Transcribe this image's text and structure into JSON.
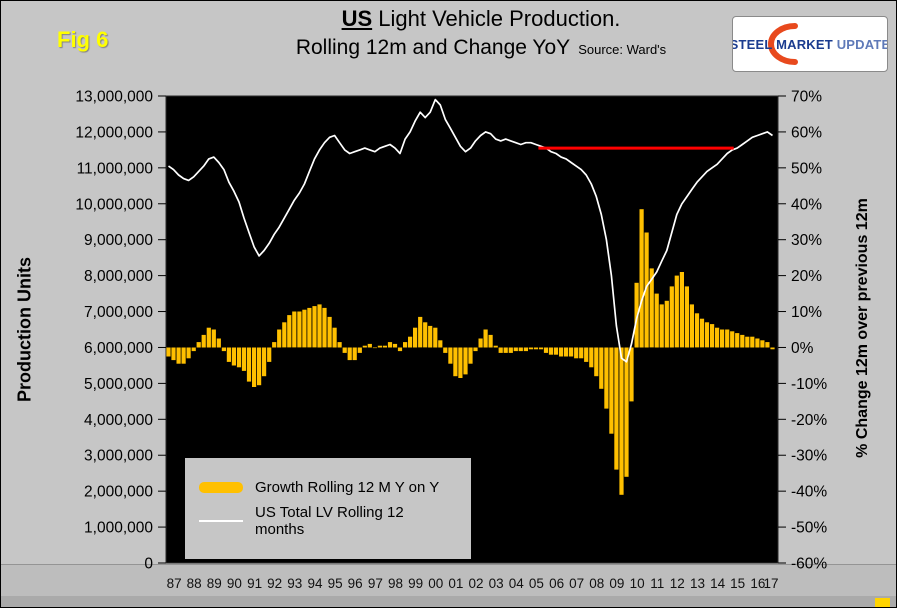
{
  "header": {
    "fig_label": "Fig 6",
    "title_us": "US",
    "title_rest": " Light Vehicle Production.",
    "title_line2": "Rolling 12m and Change YoY",
    "source": "Source: Ward's"
  },
  "logo": {
    "text_primary": "STEEL MARKET",
    "text_secondary": "UPDATE"
  },
  "left_axis": {
    "title": "Production Units",
    "min": 0,
    "max": 13000000,
    "step": 1000000,
    "tick_labels": [
      "0",
      "1,000,000",
      "2,000,000",
      "3,000,000",
      "4,000,000",
      "5,000,000",
      "6,000,000",
      "7,000,000",
      "8,000,000",
      "9,000,000",
      "10,000,000",
      "11,000,000",
      "12,000,000",
      "13,000,000"
    ]
  },
  "right_axis": {
    "title": "% Change 12m over previous 12m",
    "min": -60,
    "max": 70,
    "step": 10,
    "tick_labels": [
      "-60%",
      "-50%",
      "-40%",
      "-30%",
      "-20%",
      "-10%",
      "0%",
      "10%",
      "20%",
      "30%",
      "40%",
      "50%",
      "60%",
      "70%"
    ]
  },
  "x_axis": {
    "labels": [
      "87",
      "88",
      "89",
      "90",
      "91",
      "92",
      "93",
      "94",
      "95",
      "96",
      "97",
      "98",
      "99",
      "00",
      "01",
      "02",
      "03",
      "04",
      "05",
      "06",
      "07",
      "08",
      "09",
      "10",
      "11",
      "12",
      "13",
      "14",
      "15",
      "16",
      "17"
    ]
  },
  "legend": {
    "items": [
      {
        "label": "Growth Rolling 12 M Y on Y",
        "swatch": "bar",
        "color": "#FFC000"
      },
      {
        "label": "US Total LV Rolling 12 months",
        "swatch": "line",
        "color": "#FFFFFF"
      }
    ]
  },
  "colors": {
    "background": "#C6C6C6",
    "plot_background": "#000000",
    "bar": "#FFC000",
    "line": "#FFFFFF",
    "reference_line": "#FF0000",
    "fig_label": "#FFFF00"
  },
  "chart_data": {
    "type": "combo",
    "title": "US Light Vehicle Production. Rolling 12m and Change YoY",
    "source": "Ward's",
    "x_start": 1987.0,
    "x_step": 0.25,
    "x_range": [
      1987,
      2017.4
    ],
    "left_axis_range": [
      0,
      13000000
    ],
    "right_axis_range": [
      -60,
      70
    ],
    "grid": false,
    "legend_position": "inside-bottom-left",
    "series": [
      {
        "name": "Growth Rolling 12 M Y on Y",
        "type": "bar",
        "axis": "right",
        "unit": "%",
        "color": "#FFC000",
        "values": [
          -2.5,
          -3.5,
          -4.5,
          -4.5,
          -3.0,
          -1.0,
          1.5,
          3.5,
          5.5,
          5.0,
          2.5,
          -1.0,
          -4.0,
          -5.0,
          -5.5,
          -6.5,
          -9.5,
          -11.0,
          -10.5,
          -8.0,
          -4.0,
          1.5,
          5.0,
          7.0,
          9.0,
          10.0,
          10.0,
          10.5,
          11.0,
          11.5,
          12.0,
          11.0,
          8.5,
          5.5,
          1.5,
          -1.5,
          -3.5,
          -3.5,
          -1.5,
          0.5,
          1.0,
          0.0,
          0.5,
          0.5,
          1.5,
          1.0,
          -1.0,
          1.5,
          3.0,
          5.5,
          8.5,
          7.0,
          6.0,
          5.5,
          2.0,
          -1.5,
          -4.5,
          -8.0,
          -8.5,
          -7.5,
          -4.5,
          -1.0,
          2.5,
          5.0,
          3.5,
          0.5,
          -1.5,
          -1.5,
          -1.5,
          -1.0,
          -1.0,
          -1.0,
          -0.5,
          -0.5,
          -0.5,
          -1.5,
          -2.0,
          -2.0,
          -2.5,
          -2.5,
          -2.5,
          -3.0,
          -3.0,
          -4.0,
          -5.5,
          -8.0,
          -11.5,
          -17.0,
          -24.0,
          -34.0,
          -41.0,
          -36.0,
          -15.0,
          18.0,
          38.5,
          32.0,
          22.0,
          15.0,
          12.0,
          13.0,
          17.0,
          20.0,
          21.0,
          17.0,
          12.0,
          9.5,
          8.0,
          7.0,
          6.5,
          5.5,
          5.0,
          5.0,
          4.5,
          4.0,
          3.5,
          3.0,
          3.0,
          2.5,
          2.0,
          1.5,
          -0.5
        ]
      },
      {
        "name": "US Total LV Rolling 12 months",
        "type": "line",
        "axis": "left",
        "unit": "million units",
        "color": "#FFFFFF",
        "values": [
          11.05,
          10.95,
          10.8,
          10.7,
          10.65,
          10.75,
          10.9,
          11.05,
          11.25,
          11.3,
          11.15,
          10.95,
          10.6,
          10.35,
          10.05,
          9.6,
          9.2,
          8.8,
          8.55,
          8.7,
          8.9,
          9.15,
          9.35,
          9.6,
          9.85,
          10.1,
          10.3,
          10.55,
          10.9,
          11.25,
          11.5,
          11.7,
          11.85,
          11.9,
          11.7,
          11.5,
          11.4,
          11.45,
          11.5,
          11.55,
          11.5,
          11.45,
          11.55,
          11.6,
          11.65,
          11.55,
          11.4,
          11.8,
          12.0,
          12.3,
          12.55,
          12.4,
          12.55,
          12.9,
          12.75,
          12.35,
          12.1,
          11.85,
          11.6,
          11.45,
          11.55,
          11.75,
          11.9,
          12.0,
          11.95,
          11.8,
          11.75,
          11.8,
          11.75,
          11.7,
          11.65,
          11.7,
          11.7,
          11.65,
          11.6,
          11.55,
          11.45,
          11.4,
          11.3,
          11.25,
          11.15,
          11.05,
          10.95,
          10.8,
          10.55,
          10.2,
          9.7,
          9.0,
          8.0,
          6.6,
          5.7,
          5.6,
          6.1,
          6.8,
          7.3,
          7.7,
          7.9,
          8.1,
          8.4,
          8.7,
          9.2,
          9.7,
          10.0,
          10.2,
          10.4,
          10.6,
          10.75,
          10.9,
          11.0,
          11.1,
          11.25,
          11.4,
          11.5,
          11.55,
          11.65,
          11.75,
          11.85,
          11.9,
          11.95,
          12.0,
          11.9
        ]
      }
    ],
    "annotations": [
      {
        "type": "hline_segment",
        "color": "#FF0000",
        "y_production_units": 11550000,
        "x_from": 2005.5,
        "x_to": 2015.2
      }
    ]
  }
}
